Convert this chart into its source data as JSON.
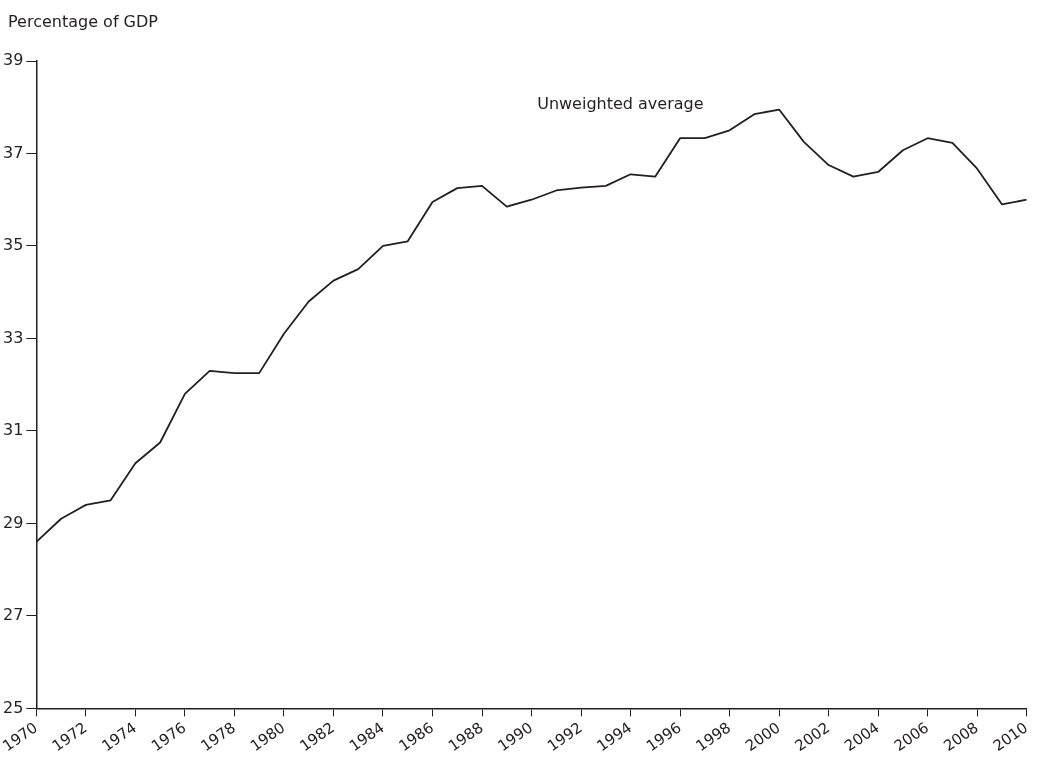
{
  "chart_data": {
    "type": "line",
    "ylabel": "Percentage of GDP",
    "x": [
      1970,
      1971,
      1972,
      1973,
      1974,
      1975,
      1976,
      1977,
      1978,
      1979,
      1980,
      1981,
      1982,
      1983,
      1984,
      1985,
      1986,
      1987,
      1988,
      1989,
      1990,
      1991,
      1992,
      1993,
      1994,
      1995,
      1996,
      1997,
      1998,
      1999,
      2000,
      2001,
      2002,
      2003,
      2004,
      2005,
      2006,
      2007,
      2008,
      2009,
      2010
    ],
    "series": [
      {
        "color": "#231f20",
        "values": [
          28.6,
          29.1,
          29.4,
          29.5,
          30.3,
          30.75,
          31.8,
          32.3,
          32.25,
          32.25,
          33.1,
          33.8,
          34.25,
          34.5,
          35.0,
          35.1,
          35.95,
          36.25,
          36.3,
          35.85,
          36.0,
          36.2,
          36.26,
          36.3,
          36.55,
          36.5,
          37.33,
          37.33,
          37.5,
          37.85,
          37.95,
          37.25,
          36.75,
          36.5,
          36.6,
          37.07,
          37.33,
          37.23,
          36.67,
          35.9,
          36.0
        ]
      }
    ],
    "xlim": [
      1970,
      2010
    ],
    "xticks": [
      1970,
      1972,
      1974,
      1976,
      1978,
      1980,
      1982,
      1984,
      1986,
      1988,
      1990,
      1992,
      1994,
      1996,
      1998,
      2000,
      2002,
      2004,
      2006,
      2008,
      2010
    ],
    "ylim": [
      25,
      39
    ],
    "yticks": [
      25,
      27,
      29,
      31,
      33,
      35,
      37,
      39
    ],
    "annotations": [
      "Unweighted average"
    ],
    "grid": false,
    "legend": false,
    "marker": "none",
    "line_style": "solid"
  }
}
